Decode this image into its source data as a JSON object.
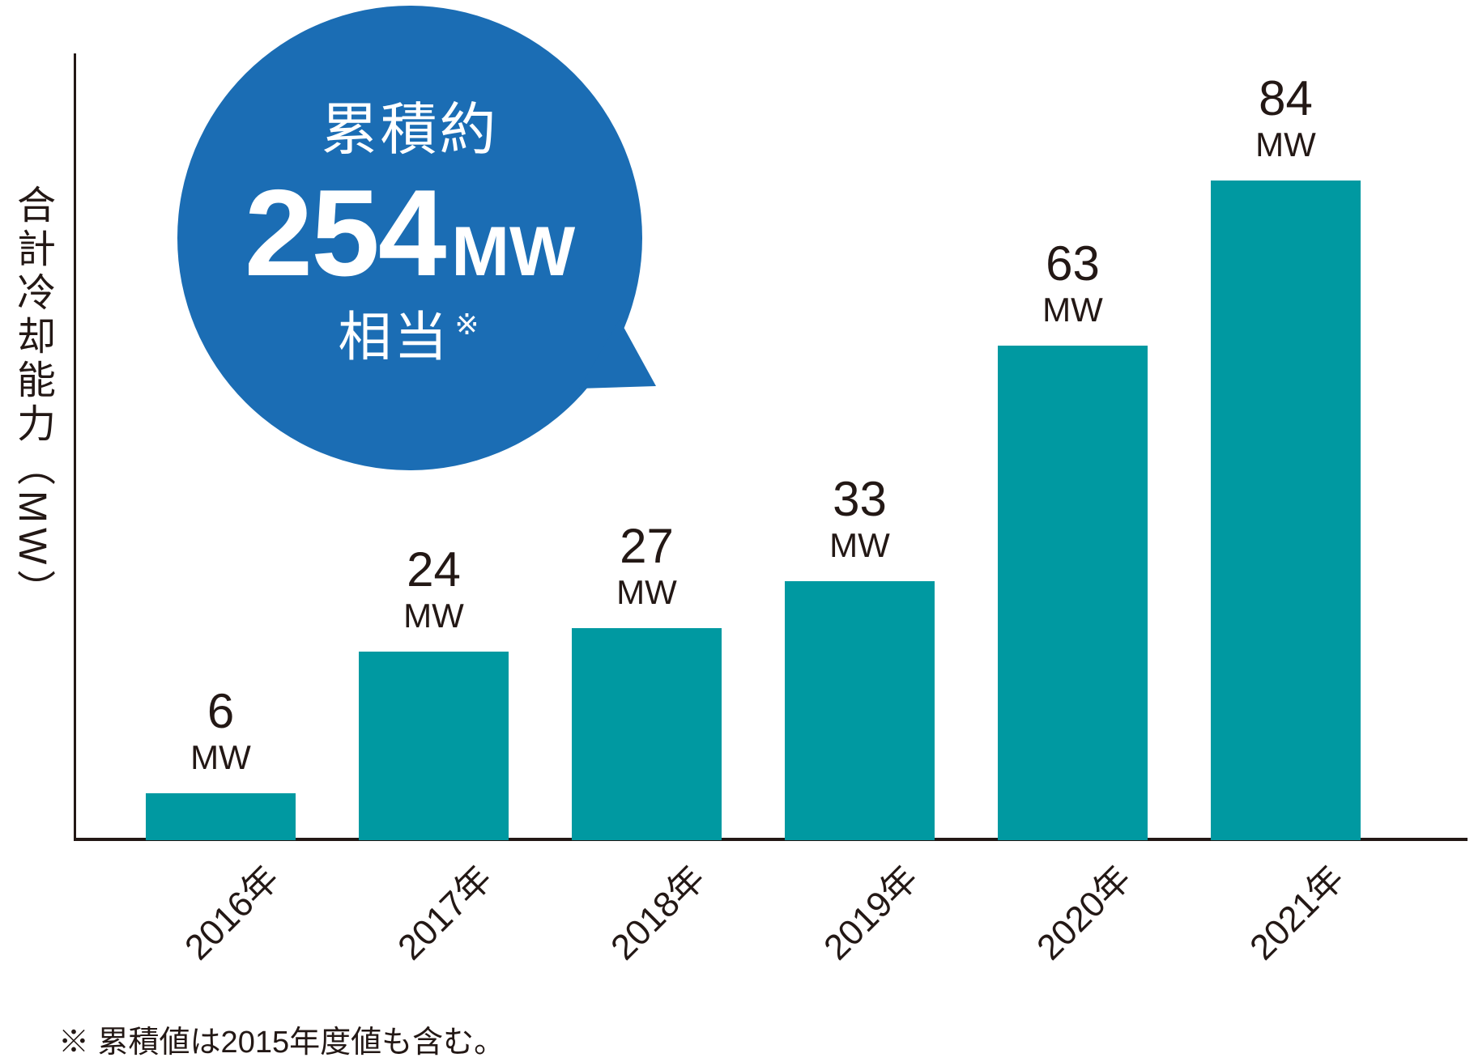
{
  "bubble": {
    "line1": "累積約",
    "value": "254",
    "unit": "MW",
    "line3": "相当",
    "note_mark": "※",
    "bg_color": "#1b6db4",
    "text_color": "#ffffff"
  },
  "chart_data": {
    "type": "bar",
    "title": "",
    "categories": [
      "2016年",
      "2017年",
      "2018年",
      "2019年",
      "2020年",
      "2021年"
    ],
    "values": [
      6,
      24,
      27,
      33,
      63,
      84
    ],
    "unit": "MW",
    "xlabel": "",
    "ylabel": "合計冷却能力（MW）",
    "ylim": [
      0,
      100
    ],
    "grid": false,
    "legend_position": "none",
    "bar_color": "#0099a1",
    "axis_color": "#231815",
    "text_color": "#231815",
    "annotation": "累積約254MW相当※"
  },
  "footnote": "※ 累積値は2015年度値も含む。"
}
